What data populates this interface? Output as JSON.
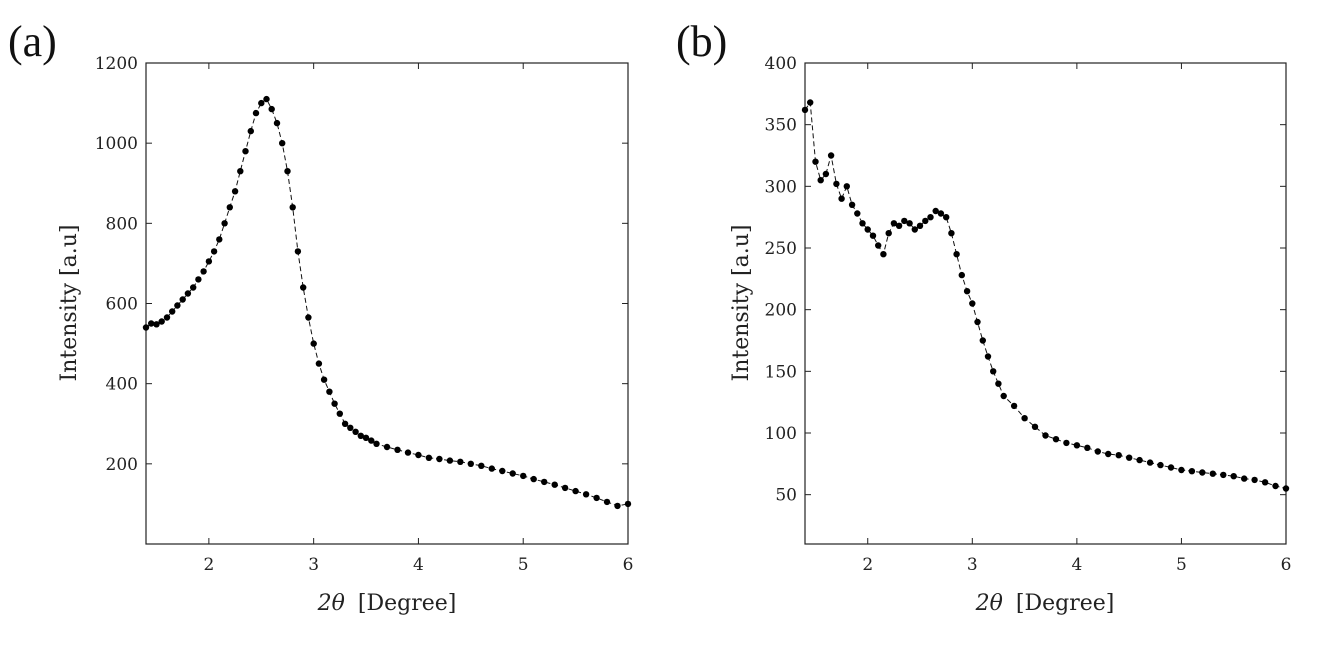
{
  "chart_data": [
    {
      "type": "scatter",
      "panel": "(a)",
      "xlabel_symbol": "2θ",
      "xlabel_unit": "[Degree]",
      "ylabel": "Intensity [a.u]",
      "xlim": [
        1.4,
        6.0
      ],
      "ylim": [
        0,
        1200
      ],
      "xticks": [
        "2",
        "3",
        "4",
        "5",
        "6"
      ],
      "yticks": [
        "200",
        "400",
        "600",
        "800",
        "1000",
        "1200"
      ],
      "series": [
        {
          "name": "a",
          "style": "dashed line with filled circle markers",
          "x": [
            1.4,
            1.45,
            1.5,
            1.55,
            1.6,
            1.65,
            1.7,
            1.75,
            1.8,
            1.85,
            1.9,
            1.95,
            2.0,
            2.05,
            2.1,
            2.15,
            2.2,
            2.25,
            2.3,
            2.35,
            2.4,
            2.45,
            2.5,
            2.55,
            2.6,
            2.65,
            2.7,
            2.75,
            2.8,
            2.85,
            2.9,
            2.95,
            3.0,
            3.05,
            3.1,
            3.15,
            3.2,
            3.25,
            3.3,
            3.35,
            3.4,
            3.45,
            3.5,
            3.55,
            3.6,
            3.7,
            3.8,
            3.9,
            4.0,
            4.1,
            4.2,
            4.3,
            4.4,
            4.5,
            4.6,
            4.7,
            4.8,
            4.9,
            5.0,
            5.1,
            5.2,
            5.3,
            5.4,
            5.5,
            5.6,
            5.7,
            5.8,
            5.9,
            6.0
          ],
          "y": [
            540,
            550,
            548,
            555,
            565,
            580,
            595,
            610,
            625,
            640,
            660,
            680,
            705,
            730,
            760,
            800,
            840,
            880,
            930,
            980,
            1030,
            1075,
            1100,
            1110,
            1085,
            1050,
            1000,
            930,
            840,
            730,
            640,
            565,
            500,
            450,
            410,
            380,
            350,
            325,
            300,
            290,
            280,
            270,
            265,
            258,
            250,
            242,
            235,
            228,
            222,
            215,
            212,
            208,
            205,
            200,
            195,
            188,
            182,
            176,
            170,
            162,
            155,
            148,
            140,
            132,
            124,
            115,
            105,
            95,
            100
          ]
        }
      ]
    },
    {
      "type": "scatter",
      "panel": "(b)",
      "xlabel_symbol": "2θ",
      "xlabel_unit": "[Degree]",
      "ylabel": "Intensity [a.u]",
      "xlim": [
        1.4,
        6.0
      ],
      "ylim": [
        10,
        400
      ],
      "xticks": [
        "2",
        "3",
        "4",
        "5",
        "6"
      ],
      "yticks": [
        "50",
        "100",
        "150",
        "200",
        "250",
        "300",
        "350",
        "400"
      ],
      "series": [
        {
          "name": "b",
          "style": "dashed line with filled circle markers",
          "x": [
            1.4,
            1.45,
            1.5,
            1.55,
            1.6,
            1.65,
            1.7,
            1.75,
            1.8,
            1.85,
            1.9,
            1.95,
            2.0,
            2.05,
            2.1,
            2.15,
            2.2,
            2.25,
            2.3,
            2.35,
            2.4,
            2.45,
            2.5,
            2.55,
            2.6,
            2.65,
            2.7,
            2.75,
            2.8,
            2.85,
            2.9,
            2.95,
            3.0,
            3.05,
            3.1,
            3.15,
            3.2,
            3.25,
            3.3,
            3.4,
            3.5,
            3.6,
            3.7,
            3.8,
            3.9,
            4.0,
            4.1,
            4.2,
            4.3,
            4.4,
            4.5,
            4.6,
            4.7,
            4.8,
            4.9,
            5.0,
            5.1,
            5.2,
            5.3,
            5.4,
            5.5,
            5.6,
            5.7,
            5.8,
            5.9,
            6.0
          ],
          "y": [
            362,
            368,
            320,
            305,
            310,
            325,
            302,
            290,
            300,
            285,
            278,
            270,
            265,
            260,
            252,
            245,
            262,
            270,
            268,
            272,
            270,
            265,
            268,
            272,
            275,
            280,
            278,
            275,
            262,
            245,
            228,
            215,
            205,
            190,
            175,
            162,
            150,
            140,
            130,
            122,
            112,
            105,
            98,
            95,
            92,
            90,
            88,
            85,
            83,
            82,
            80,
            78,
            76,
            74,
            72,
            70,
            69,
            68,
            67,
            66,
            65,
            63,
            62,
            60,
            57,
            55
          ]
        }
      ]
    }
  ]
}
